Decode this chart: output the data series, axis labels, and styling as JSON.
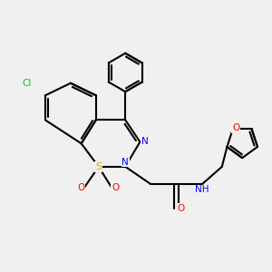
{
  "background_color": "#f0f0f0",
  "bond_color": "#000000",
  "atom_colors": {
    "Cl": "#00cc00",
    "N": "#0000ff",
    "O": "#ff0000",
    "S": "#ccaa00",
    "C": "#000000",
    "H": "#000000"
  }
}
